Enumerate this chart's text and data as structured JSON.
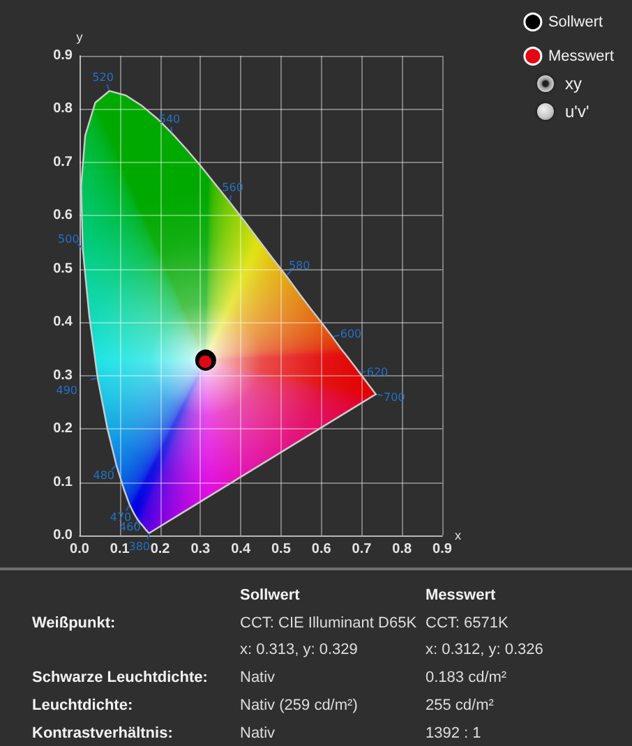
{
  "chart_data": {
    "type": "scatter",
    "xlabel": "x",
    "ylabel": "y",
    "xlim": [
      0,
      0.9
    ],
    "ylim": [
      0,
      0.9
    ],
    "xticks": [
      {
        "value": 0,
        "label": "0.0"
      },
      0.1,
      0.2,
      0.3,
      0.4,
      0.5,
      0.6,
      0.7,
      0.8,
      0.9
    ],
    "yticks": [
      {
        "value": 0,
        "label": "0.0"
      },
      0.1,
      0.2,
      0.3,
      0.4,
      0.5,
      0.6,
      0.7,
      0.8,
      0.9
    ],
    "grid": true,
    "legend": "top right",
    "marker": "circle",
    "series": [
      {
        "type": "line",
        "color": "#cccccc",
        "marker": "none",
        "x": [
          0.174,
          0.171,
          0.169,
          0.164,
          0.161,
          0.157,
          0.151,
          0.144,
          0.136,
          0.124,
          0.11,
          0.091,
          0.069,
          0.045,
          0.024,
          0.008,
          0.004,
          0.014,
          0.039,
          0.074,
          0.114,
          0.155,
          0.193,
          0.23,
          0.266,
          0.302,
          0.337,
          0.373,
          0.409,
          0.444,
          0.479,
          0.513,
          0.545,
          0.575,
          0.603,
          0.627,
          0.648,
          0.666,
          0.68,
          0.692,
          0.708,
          0.719,
          0.726,
          0.73,
          0.733,
          0.735
        ],
        "values": [
          0.005,
          0.005,
          0.007,
          0.011,
          0.014,
          0.018,
          0.023,
          0.03,
          0.04,
          0.058,
          0.087,
          0.133,
          0.201,
          0.295,
          0.413,
          0.538,
          0.655,
          0.75,
          0.812,
          0.834,
          0.826,
          0.806,
          0.782,
          0.754,
          0.724,
          0.692,
          0.659,
          0.625,
          0.59,
          0.555,
          0.52,
          0.487,
          0.454,
          0.424,
          0.397,
          0.373,
          0.351,
          0.334,
          0.32,
          0.308,
          0.292,
          0.281,
          0.274,
          0.27,
          0.267,
          0.265
        ]
      },
      {
        "type": "line",
        "color": "#cccccc",
        "marker": "none",
        "x": [
          0.735,
          0.174
        ],
        "values": [
          0.265,
          0.005
        ]
      },
      {
        "name": "Sollwert",
        "color": "#000000",
        "x": [
          0.313
        ],
        "values": [
          0.329
        ]
      },
      {
        "name": "Messwert",
        "color": "#e30613",
        "x": [
          0.312
        ],
        "values": [
          0.326
        ]
      }
    ],
    "annotations": [
      {
        "text": "380",
        "x": 0.174,
        "y": 0.005
      },
      {
        "text": "460",
        "x": 0.144,
        "y": 0.03
      },
      {
        "text": "470",
        "x": 0.124,
        "y": 0.058
      },
      {
        "text": "480",
        "x": 0.091,
        "y": 0.133
      },
      {
        "text": "490",
        "x": 0.045,
        "y": 0.295
      },
      {
        "text": "500",
        "x": 0.008,
        "y": 0.538
      },
      {
        "text": "520",
        "x": 0.074,
        "y": 0.834
      },
      {
        "text": "540",
        "x": 0.23,
        "y": 0.754
      },
      {
        "text": "560",
        "x": 0.373,
        "y": 0.625
      },
      {
        "text": "580",
        "x": 0.513,
        "y": 0.487
      },
      {
        "text": "600",
        "x": 0.627,
        "y": 0.373
      },
      {
        "text": "620",
        "x": 0.692,
        "y": 0.308
      },
      {
        "text": "700",
        "x": 0.735,
        "y": 0.265
      },
      "xy",
      "u'v'",
      "Sollwert",
      "Messwert",
      "Weißpunkt:",
      "CCT: CIE Illuminant D65K\nx: 0.313, y: 0.329",
      "CCT: 6571K\nx: 0.312, y: 0.326",
      "Schwarze Leuchtdichte:",
      "Nativ",
      "0.183 cd/m²",
      "Leuchtdichte:",
      "Nativ (259 cd/m²)",
      "255 cd/m²",
      "Kontrastverhältnis:",
      "Nativ",
      "1392 : 1"
    ]
  }
}
